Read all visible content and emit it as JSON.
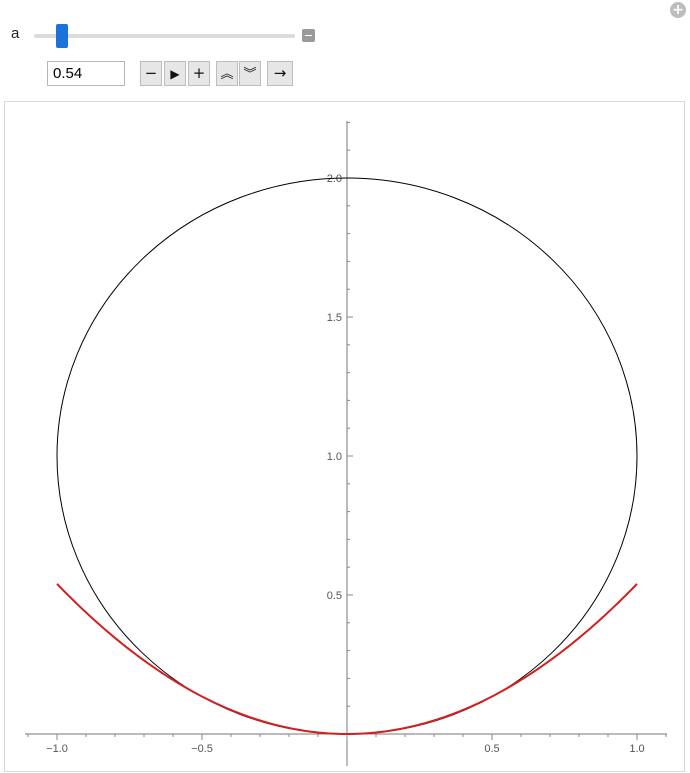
{
  "manipulate": {
    "variable_label": "a",
    "slider_value": 0.54,
    "slider_range": [
      0,
      5
    ],
    "value_text": "0.54",
    "buttons": {
      "decrement": "−",
      "play": "▶",
      "increment": "+",
      "faster": "≈",
      "slower": "≈",
      "direction": "→"
    }
  },
  "chart_data": {
    "type": "line",
    "title": "",
    "xlabel": "",
    "ylabel": "",
    "xlim": [
      -1.1,
      1.1
    ],
    "ylim": [
      0,
      2.2
    ],
    "x_ticks": [
      {
        "value": -1.0,
        "label": "−1.0"
      },
      {
        "value": -0.5,
        "label": "−0.5"
      },
      {
        "value": 0.5,
        "label": "0.5"
      },
      {
        "value": 1.0,
        "label": "1.0"
      }
    ],
    "y_ticks": [
      {
        "value": 0.5,
        "label": "0.5"
      },
      {
        "value": 1.0,
        "label": "1.0"
      },
      {
        "value": 1.5,
        "label": "1.5"
      },
      {
        "value": 2.0,
        "label": "2.0"
      }
    ],
    "series": [
      {
        "kind": "circle",
        "center": [
          0,
          1
        ],
        "radius": 1,
        "color": "#000000"
      },
      {
        "kind": "parabola",
        "equation": "y = a·x²",
        "a": 0.54,
        "x_range": [
          -1,
          1
        ],
        "color": "#d41f1f"
      }
    ]
  }
}
